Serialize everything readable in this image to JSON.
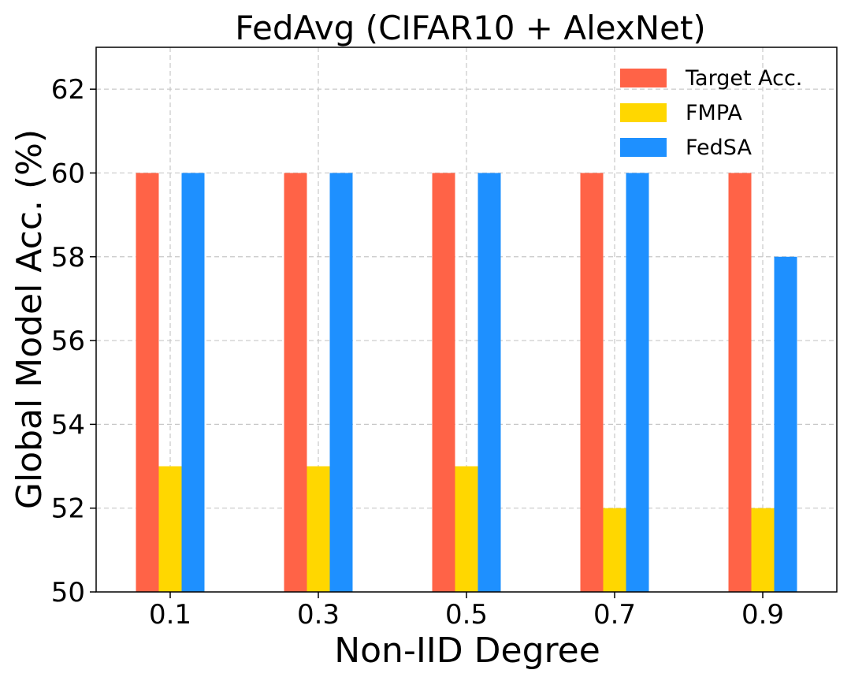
{
  "chart_data": {
    "type": "bar",
    "title": "FedAvg (CIFAR10 + AlexNet)",
    "xlabel": "Non-IID Degree",
    "ylabel": "Global Model Acc. (%)",
    "categories": [
      "0.1",
      "0.3",
      "0.5",
      "0.7",
      "0.9"
    ],
    "ylim": [
      50,
      63
    ],
    "yticks": [
      50,
      52,
      54,
      56,
      58,
      60,
      62
    ],
    "grid": true,
    "legend_position": "top-right",
    "series": [
      {
        "name": "Target Acc.",
        "color": "#ff6347",
        "values": [
          60,
          60,
          60,
          60,
          60
        ]
      },
      {
        "name": "FMPA",
        "color": "#ffd700",
        "values": [
          53,
          53,
          53,
          52,
          52
        ]
      },
      {
        "name": "FedSA",
        "color": "#1e90ff",
        "values": [
          60,
          60,
          60,
          60,
          58
        ]
      }
    ]
  }
}
